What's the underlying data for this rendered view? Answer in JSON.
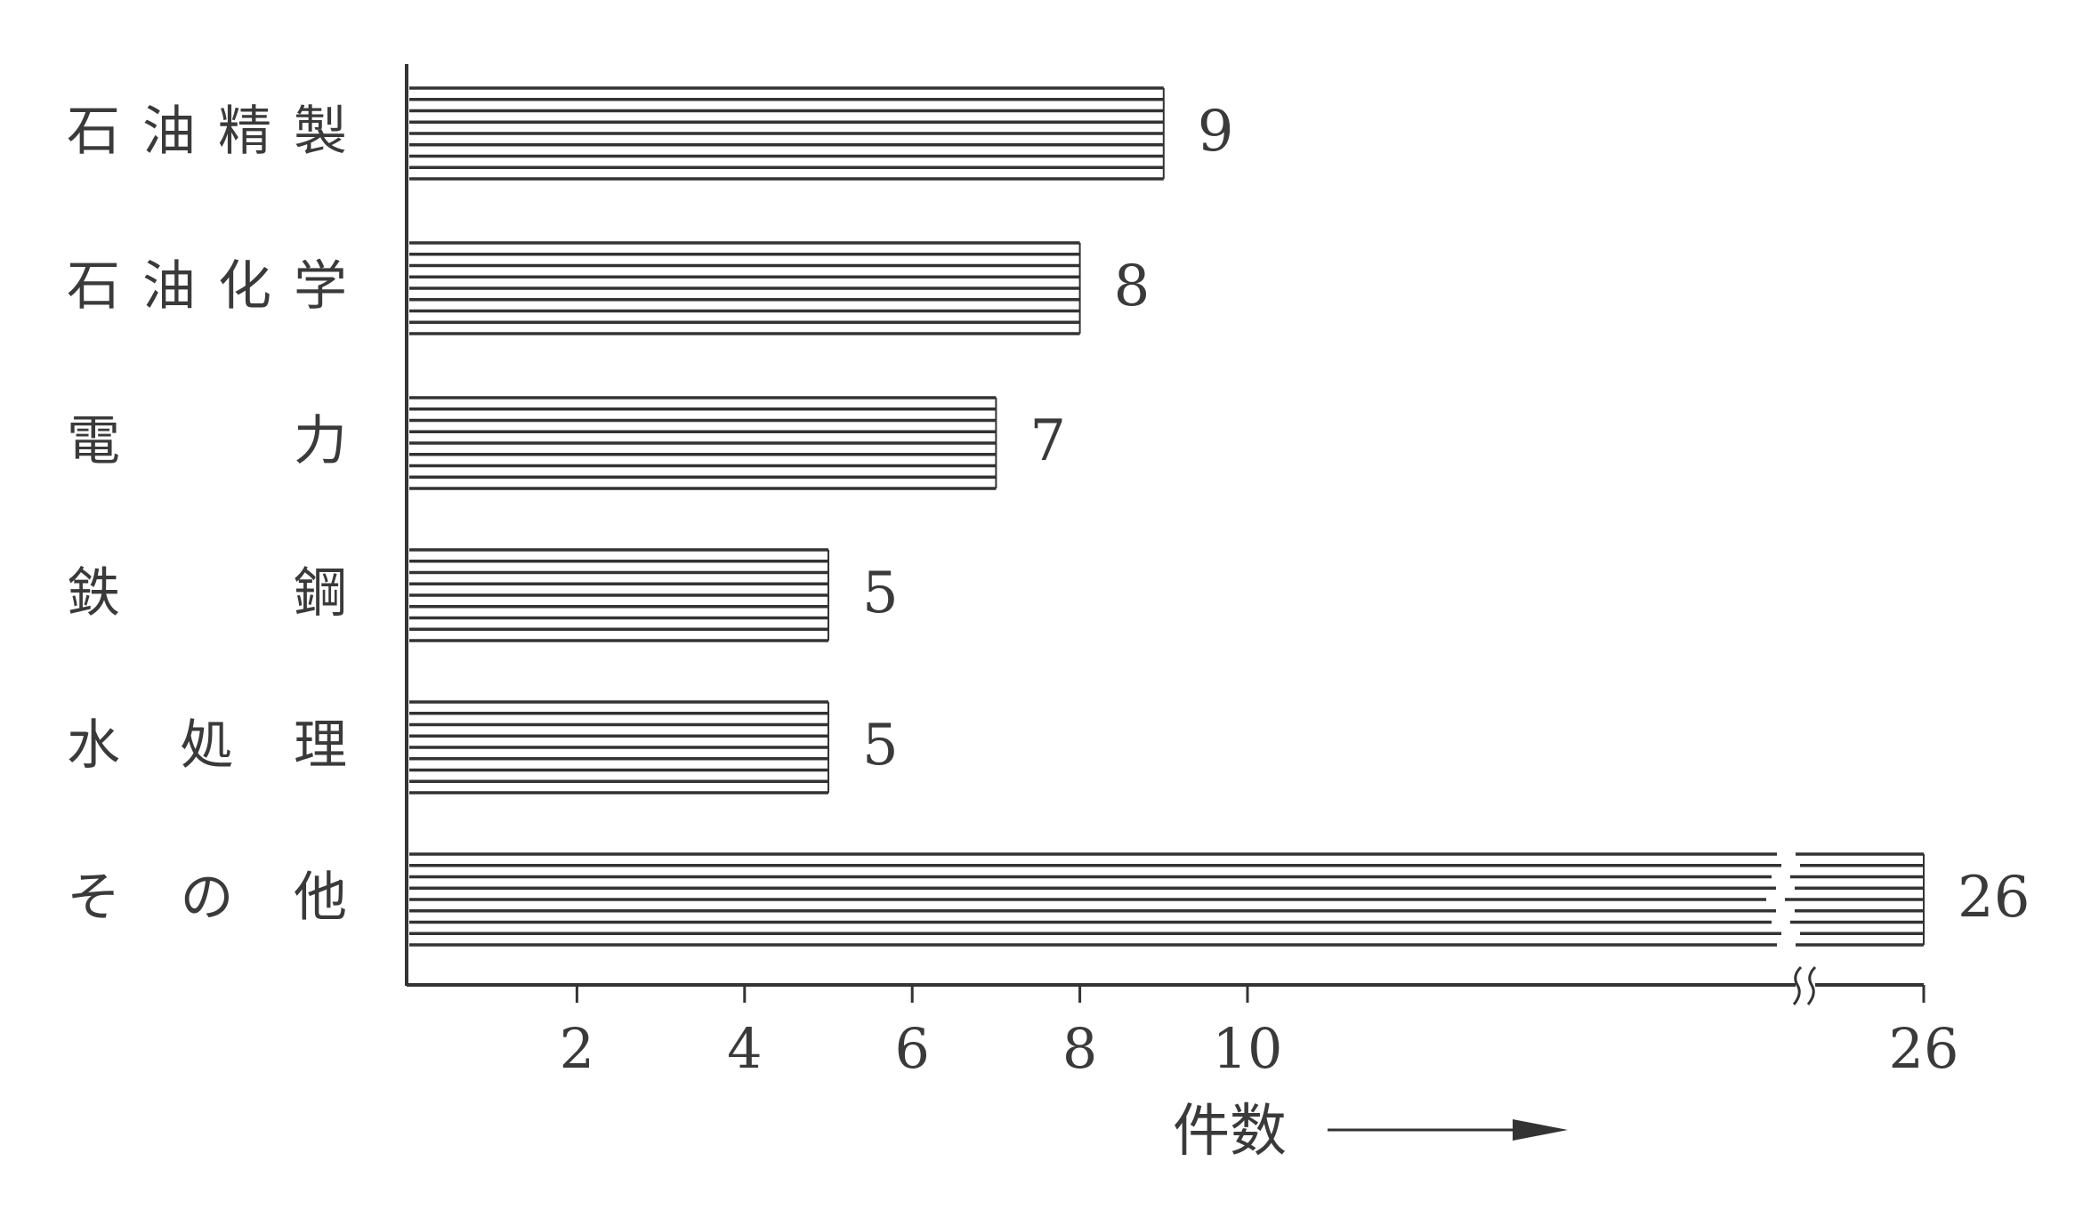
{
  "chart_data": {
    "type": "bar",
    "orientation": "horizontal",
    "categories": [
      "石油精製",
      "石油化学",
      "電力",
      "鉄鋼",
      "水処理",
      "その他"
    ],
    "values": [
      9,
      8,
      7,
      5,
      5,
      26
    ],
    "data_labels": [
      "9",
      "8",
      "7",
      "5",
      "5",
      "26"
    ],
    "xlabel": "件数",
    "xlabel_arrow": true,
    "xticks": [
      2,
      4,
      6,
      8,
      10,
      26
    ],
    "xtick_labels": [
      "2",
      "4",
      "6",
      "8",
      "10",
      "26"
    ],
    "xlim": [
      0,
      26
    ],
    "axis_break": [
      11,
      25
    ],
    "grid": false,
    "bar_fill": "horizontal-hatch",
    "colors": {
      "ink": "#333333",
      "background": "#ffffff"
    }
  }
}
